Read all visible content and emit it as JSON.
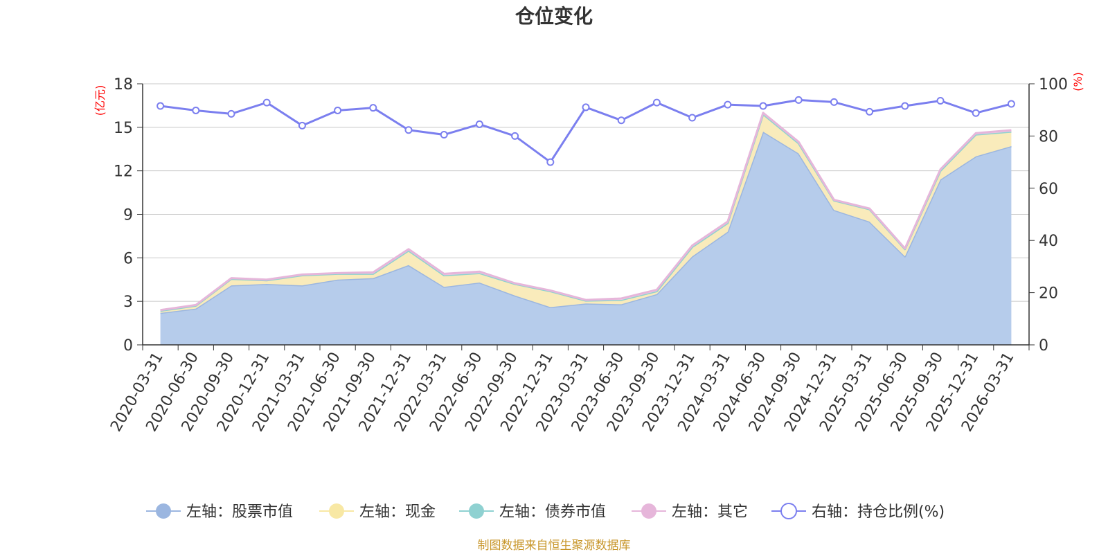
{
  "chart_data": {
    "type": "area",
    "title": "仓位变化",
    "categories": [
      "2020-03-31",
      "2020-06-30",
      "2020-09-30",
      "2020-12-31",
      "2021-03-31",
      "2021-06-30",
      "2021-09-30",
      "2021-12-31",
      "2022-03-31",
      "2022-06-30",
      "2022-09-30",
      "2022-12-31",
      "2023-03-31",
      "2023-06-30",
      "2023-09-30",
      "2023-12-31",
      "2024-03-31",
      "2024-06-30",
      "2024-09-30",
      "2024-12-31",
      "2025-03-31",
      "2025-06-30",
      "2025-09-30",
      "2025-12-31",
      "2026-03-31"
    ],
    "left_axis": {
      "unit": "(亿元)",
      "ylim": [
        0,
        18
      ],
      "ticks": [
        "0",
        "3",
        "6",
        "9",
        "12",
        "15",
        "18"
      ]
    },
    "right_axis": {
      "unit": "(%)",
      "ylim": [
        0,
        100
      ],
      "ticks": [
        "0",
        "20",
        "40",
        "60",
        "80",
        "100"
      ]
    },
    "series": [
      {
        "name": "左轴：股票市值",
        "axis": "left",
        "stack": true,
        "color": "#9bb6e0",
        "fill": "#b6cceb",
        "values": [
          2.2,
          2.5,
          4.1,
          4.2,
          4.1,
          4.5,
          4.6,
          5.5,
          4.0,
          4.3,
          3.4,
          2.6,
          2.85,
          2.8,
          3.5,
          6.1,
          7.8,
          14.7,
          13.2,
          9.3,
          8.5,
          6.1,
          11.4,
          13.0,
          13.7
        ]
      },
      {
        "name": "左轴：现金",
        "axis": "left",
        "stack": true,
        "color": "#f8e8a4",
        "fill": "#f9ebbb",
        "values": [
          0.15,
          0.2,
          0.45,
          0.25,
          0.7,
          0.4,
          0.3,
          1.0,
          0.8,
          0.65,
          0.8,
          1.1,
          0.2,
          0.3,
          0.2,
          0.65,
          0.6,
          1.2,
          0.7,
          0.65,
          0.85,
          0.5,
          0.6,
          1.5,
          1.0
        ]
      },
      {
        "name": "左轴：债券市值",
        "axis": "left",
        "stack": true,
        "color": "#8fd1d1",
        "fill": "#a9dede",
        "values": [
          0,
          0,
          0,
          0,
          0,
          0,
          0,
          0,
          0,
          0,
          0,
          0,
          0,
          0,
          0,
          0,
          0,
          0,
          0,
          0,
          0,
          0,
          0,
          0,
          0
        ]
      },
      {
        "name": "左轴：其它",
        "axis": "left",
        "stack": true,
        "color": "#e6b6da",
        "fill": "#f0cde6",
        "values": [
          0.05,
          0.05,
          0.05,
          0.05,
          0.05,
          0.05,
          0.1,
          0.1,
          0.1,
          0.1,
          0.05,
          0.05,
          0.05,
          0.1,
          0.1,
          0.1,
          0.1,
          0.1,
          0.1,
          0.05,
          0.05,
          0.05,
          0.1,
          0.1,
          0.1
        ]
      },
      {
        "name": "右轴：持仓比例(%)",
        "axis": "right",
        "stack": false,
        "color": "#7b7fef",
        "fill": "#ffffff",
        "values": [
          91.5,
          89.8,
          88.5,
          92.8,
          84.0,
          89.8,
          90.8,
          82.3,
          80.5,
          84.5,
          80.0,
          70.0,
          91.0,
          86.0,
          92.8,
          87.0,
          92.0,
          91.5,
          93.8,
          93.0,
          89.3,
          91.5,
          93.5,
          88.8,
          92.3
        ]
      }
    ],
    "legend_position": "bottom",
    "source_note": "制图数据来自恒生聚源数据库"
  }
}
